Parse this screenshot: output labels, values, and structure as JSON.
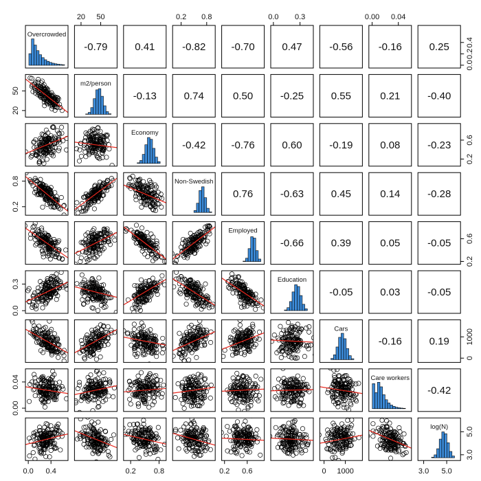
{
  "chart_data": {
    "type": "scatter",
    "variables": [
      "Overcrowded",
      "m2/person",
      "Economy",
      "Non-Swedish",
      "Employed",
      "Education",
      "Cars",
      "Care workers",
      "log(N)"
    ],
    "correlations": [
      [
        null,
        "-0.79",
        "0.41",
        "-0.82",
        "-0.70",
        "0.47",
        "-0.56",
        "-0.16",
        "0.25"
      ],
      [
        null,
        null,
        "-0.13",
        "0.74",
        "0.50",
        "-0.25",
        "0.55",
        "0.21",
        "-0.40"
      ],
      [
        null,
        null,
        null,
        "-0.42",
        "-0.76",
        "0.60",
        "-0.19",
        "0.08",
        "-0.23"
      ],
      [
        null,
        null,
        null,
        null,
        "0.76",
        "-0.63",
        "0.45",
        "0.14",
        "-0.28"
      ],
      [
        null,
        null,
        null,
        null,
        null,
        "-0.66",
        "0.39",
        "0.05",
        "-0.05"
      ],
      [
        null,
        null,
        null,
        null,
        null,
        null,
        "-0.05",
        "0.03",
        "-0.05"
      ],
      [
        null,
        null,
        null,
        null,
        null,
        null,
        null,
        "-0.16",
        "0.19"
      ],
      [
        null,
        null,
        null,
        null,
        null,
        null,
        null,
        null,
        "-0.42"
      ]
    ],
    "ranges": [
      [
        -0.05,
        0.7
      ],
      [
        10,
        75
      ],
      [
        0.05,
        0.95
      ],
      [
        0.0,
        1.0
      ],
      [
        0.15,
        0.9
      ],
      [
        -0.03,
        0.45
      ],
      [
        -200,
        1800
      ],
      [
        -0.005,
        0.06
      ],
      [
        2.5,
        6.2
      ]
    ],
    "axis_ticks": [
      {
        "side": "bottom",
        "var": 0,
        "values": [
          "0.0",
          "0.4"
        ]
      },
      {
        "side": "bottom",
        "var": 2,
        "values": [
          "0.2",
          "0.8"
        ]
      },
      {
        "side": "bottom",
        "var": 4,
        "values": [
          "0.2",
          "0.6"
        ]
      },
      {
        "side": "bottom",
        "var": 6,
        "values": [
          "0",
          "1000"
        ]
      },
      {
        "side": "bottom",
        "var": 8,
        "values": [
          "3.0",
          "5.0"
        ]
      },
      {
        "side": "top",
        "var": 1,
        "values": [
          "20",
          "50"
        ]
      },
      {
        "side": "top",
        "var": 3,
        "values": [
          "0.2",
          "0.8"
        ]
      },
      {
        "side": "top",
        "var": 5,
        "values": [
          "0.0",
          "0.3"
        ]
      },
      {
        "side": "top",
        "var": 7,
        "values": [
          "0.00",
          "0.04"
        ]
      },
      {
        "side": "left",
        "var": 1,
        "values": [
          "20",
          "50"
        ]
      },
      {
        "side": "left",
        "var": 3,
        "values": [
          "0.2",
          "0.8"
        ]
      },
      {
        "side": "left",
        "var": 5,
        "values": [
          "0.0",
          "0.3"
        ]
      },
      {
        "side": "left",
        "var": 7,
        "values": [
          "0.00",
          "0.04"
        ]
      },
      {
        "side": "right",
        "var": 0,
        "values": [
          "0.0",
          "0.2",
          "0.4"
        ]
      },
      {
        "side": "right",
        "var": 2,
        "values": [
          "0.2",
          "0.6"
        ]
      },
      {
        "side": "right",
        "var": 4,
        "values": [
          "0.2",
          "0.6"
        ]
      },
      {
        "side": "right",
        "var": 6,
        "values": [
          "0",
          "1000"
        ]
      },
      {
        "side": "right",
        "var": 8,
        "values": [
          "3.0",
          "5.0"
        ]
      }
    ],
    "scatter_style": {
      "point": "open circle",
      "point_color": "#000000",
      "fit_line_color": "#e8261c"
    },
    "histogram_style": {
      "fill": "#3c8bd9",
      "density_curve": true
    },
    "grid": false,
    "legend": "none"
  },
  "colors": {
    "histogram_fill": "#3c8bd9",
    "fit_line": "#e8261c",
    "points": "#000000",
    "panel_border": "#000000"
  }
}
